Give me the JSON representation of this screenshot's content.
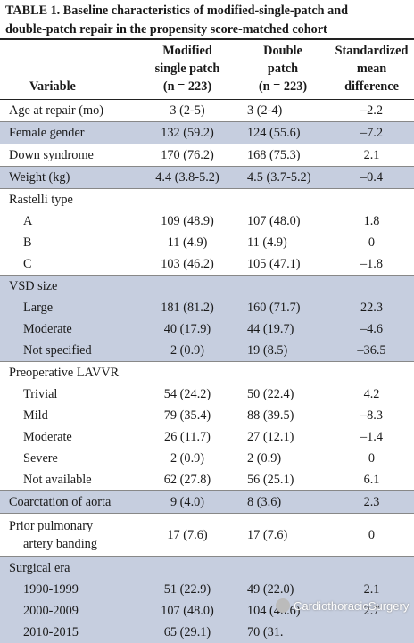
{
  "caption": {
    "line1": "TABLE 1. Baseline characteristics of modified-single-patch and",
    "line2": "double-patch repair in the propensity score-matched cohort"
  },
  "header": {
    "variable": "Variable",
    "col2": [
      "Modified",
      "single patch",
      "(n = 223)"
    ],
    "col3": [
      "Double",
      "patch",
      "(n = 223)"
    ],
    "col4": [
      "Standardized",
      "mean",
      "difference"
    ]
  },
  "rows": [
    {
      "label": "Age at repair (mo)",
      "a": "3 (2-5)",
      "b": "3 (2-4)",
      "d": "–2.2",
      "shade": false
    },
    {
      "label": "Female gender",
      "a": "132 (59.2)",
      "b": "124 (55.6)",
      "d": "–7.2",
      "shade": true
    },
    {
      "label": "Down syndrome",
      "a": "170 (76.2)",
      "b": "168 (75.3)",
      "d": "2.1",
      "shade": false
    },
    {
      "label": "Weight (kg)",
      "a": "4.4 (3.8-5.2)",
      "b": "4.5 (3.7-5.2)",
      "d": "–0.4",
      "shade": true
    },
    {
      "label": "Rastelli type",
      "a": "",
      "b": "",
      "d": "",
      "shade": false
    },
    {
      "label": "A",
      "sub": true,
      "a": "109 (48.9)",
      "b": "107 (48.0)",
      "d": "1.8",
      "shade": false
    },
    {
      "label": "B",
      "sub": true,
      "a": "11 (4.9)",
      "b": "11 (4.9)",
      "d": "0",
      "shade": false
    },
    {
      "label": "C",
      "sub": true,
      "a": "103 (46.2)",
      "b": "105 (47.1)",
      "d": "–1.8",
      "shade": false
    },
    {
      "label": "VSD size",
      "a": "",
      "b": "",
      "d": "",
      "shade": true
    },
    {
      "label": "Large",
      "sub": true,
      "a": "181 (81.2)",
      "b": "160 (71.7)",
      "d": "22.3",
      "shade": true
    },
    {
      "label": "Moderate",
      "sub": true,
      "a": "40 (17.9)",
      "b": "44 (19.7)",
      "d": "–4.6",
      "shade": true
    },
    {
      "label": "Not specified",
      "sub": true,
      "a": "2 (0.9)",
      "b": "19 (8.5)",
      "d": "–36.5",
      "shade": true
    },
    {
      "label": "Preoperative LAVVR",
      "a": "",
      "b": "",
      "d": "",
      "shade": false
    },
    {
      "label": "Trivial",
      "sub": true,
      "a": "54 (24.2)",
      "b": "50 (22.4)",
      "d": "4.2",
      "shade": false
    },
    {
      "label": "Mild",
      "sub": true,
      "a": "79 (35.4)",
      "b": "88 (39.5)",
      "d": "–8.3",
      "shade": false
    },
    {
      "label": "Moderate",
      "sub": true,
      "a": "26 (11.7)",
      "b": "27 (12.1)",
      "d": "–1.4",
      "shade": false
    },
    {
      "label": "Severe",
      "sub": true,
      "a": "2 (0.9)",
      "b": "2 (0.9)",
      "d": "0",
      "shade": false
    },
    {
      "label": "Not available",
      "sub": true,
      "a": "62 (27.8)",
      "b": "56 (25.1)",
      "d": "6.1",
      "shade": false
    },
    {
      "label": "Coarctation of aorta",
      "a": "9 (4.0)",
      "b": "8 (3.6)",
      "d": "2.3",
      "shade": true
    },
    {
      "label": "Prior pulmonary",
      "label2": "artery banding",
      "a": "17 (7.6)",
      "b": "17 (7.6)",
      "d": "0",
      "shade": false
    },
    {
      "label": "Surgical era",
      "a": "",
      "b": "",
      "d": "",
      "shade": true
    },
    {
      "label": "1990-1999",
      "sub": true,
      "a": "51 (22.9)",
      "b": "49 (22.0)",
      "d": "2.1",
      "shade": true
    },
    {
      "label": "2000-2009",
      "sub": true,
      "a": "107 (48.0)",
      "b": "104 (46.6)",
      "d": "2.7",
      "shade": true
    },
    {
      "label": "2010-2015",
      "sub": true,
      "a": "65 (29.1)",
      "b": "70 (31.",
      "d": "",
      "shade": true
    }
  ],
  "watermark": "CardiothoracicSurgery"
}
